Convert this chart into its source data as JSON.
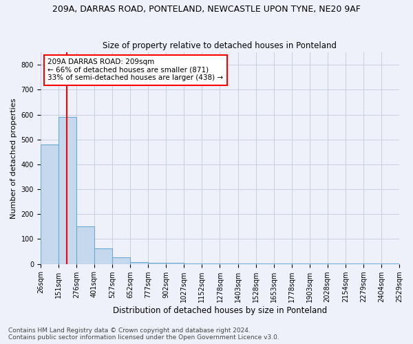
{
  "title_line1": "209A, DARRAS ROAD, PONTELAND, NEWCASTLE UPON TYNE, NE20 9AF",
  "title_line2": "Size of property relative to detached houses in Ponteland",
  "xlabel": "Distribution of detached houses by size in Ponteland",
  "ylabel": "Number of detached properties",
  "bin_edges": [
    26,
    151,
    276,
    401,
    527,
    652,
    777,
    902,
    1027,
    1152,
    1278,
    1403,
    1528,
    1653,
    1778,
    1903,
    2028,
    2154,
    2279,
    2404,
    2529
  ],
  "bar_heights": [
    480,
    590,
    150,
    63,
    27,
    8,
    5,
    4,
    3,
    2,
    2,
    1,
    1,
    1,
    1,
    1,
    1,
    1,
    1,
    1
  ],
  "bar_color": "#c5d8ee",
  "bar_edge_color": "#6aaad4",
  "property_size": 209,
  "vline_color": "red",
  "annotation_text": "209A DARRAS ROAD: 209sqm\n← 66% of detached houses are smaller (871)\n33% of semi-detached houses are larger (438) →",
  "annotation_box_color": "white",
  "annotation_box_edge": "red",
  "ylim": [
    0,
    850
  ],
  "yticks": [
    0,
    100,
    200,
    300,
    400,
    500,
    600,
    700,
    800
  ],
  "grid_color": "#c8d0e0",
  "background_color": "#eef1fa",
  "footnote1": "Contains HM Land Registry data © Crown copyright and database right 2024.",
  "footnote2": "Contains public sector information licensed under the Open Government Licence v3.0.",
  "title1_fontsize": 9,
  "title2_fontsize": 8.5,
  "xlabel_fontsize": 8.5,
  "ylabel_fontsize": 8,
  "tick_fontsize": 7,
  "annot_fontsize": 7.5,
  "footnote_fontsize": 6.5
}
